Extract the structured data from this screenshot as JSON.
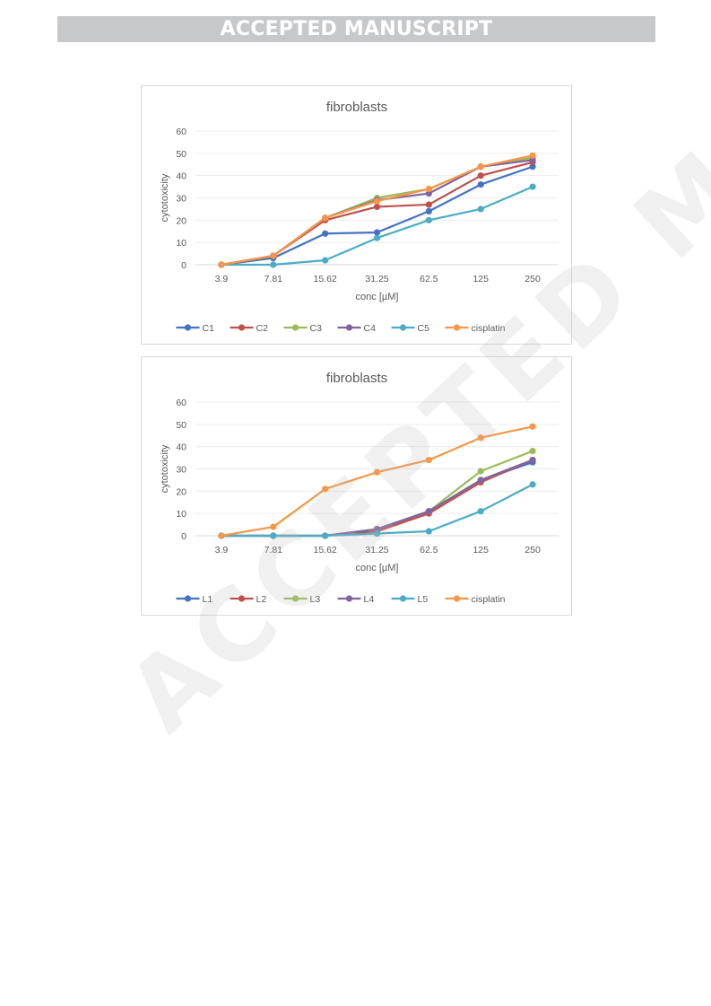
{
  "banner": {
    "text": "ACCEPTED MANUSCRIPT"
  },
  "watermark": {
    "text": "ACCEPTED MANUSCRIPT"
  },
  "chart_data": [
    {
      "type": "line",
      "title": "fibroblasts",
      "xlabel": "conc [µM]",
      "ylabel": "cytotoxicity",
      "ylim": [
        0,
        60
      ],
      "yticks": [
        "0",
        "10",
        "20",
        "30",
        "40",
        "50",
        "60"
      ],
      "categories": [
        "3.9",
        "7.81",
        "15.62",
        "31.25",
        "62.5",
        "125",
        "250"
      ],
      "grid": "horizontal",
      "legend_position": "bottom",
      "series": [
        {
          "name": "C1",
          "color": "#4472c4",
          "values": [
            0,
            3,
            14,
            14.5,
            24,
            36,
            44
          ]
        },
        {
          "name": "C2",
          "color": "#c0504d",
          "values": [
            0,
            4,
            20,
            26,
            27,
            40,
            46
          ]
        },
        {
          "name": "C3",
          "color": "#9bbb59",
          "values": [
            0,
            4,
            21,
            30,
            34,
            44,
            48
          ]
        },
        {
          "name": "C4",
          "color": "#8064a2",
          "values": [
            0,
            4,
            21,
            29,
            32,
            44,
            47
          ]
        },
        {
          "name": "C5",
          "color": "#4bacc6",
          "values": [
            0,
            0,
            2,
            12,
            20,
            25,
            35
          ]
        },
        {
          "name": "cisplatin",
          "color": "#f79646",
          "values": [
            0,
            4,
            21,
            28.5,
            34,
            44,
            49
          ]
        }
      ]
    },
    {
      "type": "line",
      "title": "fibroblasts",
      "xlabel": "conc [µM]",
      "ylabel": "cytotoxicity",
      "ylim": [
        0,
        60
      ],
      "yticks": [
        "0",
        "10",
        "20",
        "30",
        "40",
        "50",
        "60"
      ],
      "categories": [
        "3.9",
        "7.81",
        "15.62",
        "31.25",
        "62.5",
        "125",
        "250"
      ],
      "grid": "horizontal",
      "legend_position": "bottom",
      "series": [
        {
          "name": "L1",
          "color": "#4472c4",
          "values": [
            0,
            0,
            0,
            2.5,
            11,
            25,
            33
          ]
        },
        {
          "name": "L2",
          "color": "#c0504d",
          "values": [
            0,
            0,
            0,
            2,
            10,
            24,
            34
          ]
        },
        {
          "name": "L3",
          "color": "#9bbb59",
          "values": [
            0,
            0,
            0,
            3,
            11,
            29,
            38
          ]
        },
        {
          "name": "L4",
          "color": "#8064a2",
          "values": [
            0,
            0,
            0,
            3,
            11,
            25,
            34
          ]
        },
        {
          "name": "L5",
          "color": "#4bacc6",
          "values": [
            0,
            0,
            0,
            1,
            2,
            11,
            23
          ]
        },
        {
          "name": "cisplatin",
          "color": "#f79646",
          "values": [
            0,
            4,
            21,
            28.5,
            34,
            44,
            49
          ]
        }
      ]
    }
  ]
}
